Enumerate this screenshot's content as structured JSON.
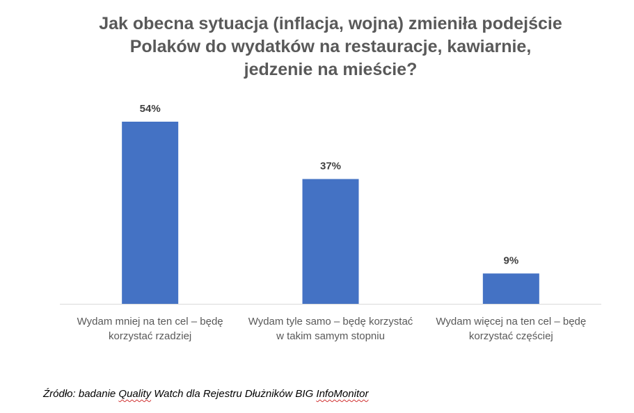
{
  "chart_data": {
    "type": "bar",
    "title_lines": [
      "Jak obecna sytuacja (inflacja, wojna) zmieniła podejście",
      "Polaków do wydatków na restauracje, kawiarnie,",
      "jedzenie na mieście?"
    ],
    "categories": [
      [
        "Wydam mniej na ten cel – będę",
        "korzystać rzadziej"
      ],
      [
        "Wydam tyle samo – będę korzystać",
        "w takim samym stopniu"
      ],
      [
        "Wydam więcej na ten cel – będę",
        "korzystać częściej"
      ]
    ],
    "values": [
      54,
      37,
      9
    ],
    "data_labels": [
      "54%",
      "37%",
      "9%"
    ],
    "unit": "%",
    "ylim": [
      0,
      60
    ],
    "grid": false,
    "legend": "none",
    "bar_color": "#4472c4"
  },
  "source": {
    "prefix": "Źródło: badanie ",
    "quality": "Quality",
    "middle": " Watch dla Rejestru Dłużników BIG ",
    "infomonitor": "InfoMonitor"
  }
}
